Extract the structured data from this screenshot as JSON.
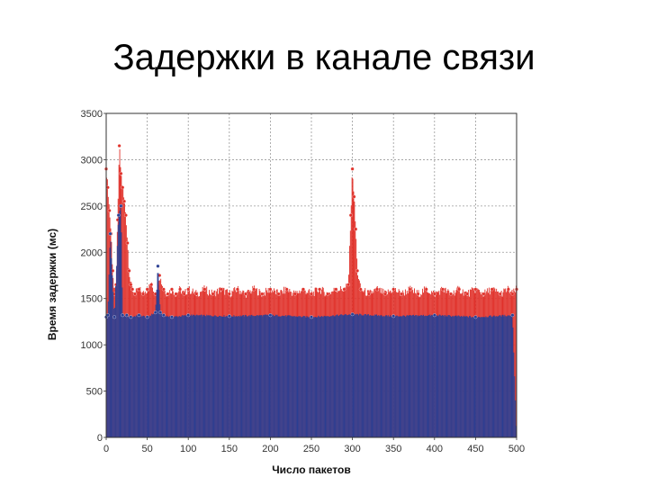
{
  "title": "Задержки в канале связи",
  "colors": {
    "total_delay": "#e0312a",
    "base_delay": "#2b3f93",
    "grid": "#9a9a9a",
    "axis": "#333333"
  },
  "chart_data": {
    "type": "bar",
    "xlabel": "Число пакетов",
    "ylabel": "Время задержки (мс)",
    "xlim": [
      0,
      500
    ],
    "ylim": [
      0,
      3500
    ],
    "xticks": [
      0,
      50,
      100,
      150,
      200,
      250,
      300,
      350,
      400,
      450,
      500
    ],
    "yticks": [
      0,
      500,
      1000,
      1500,
      2000,
      2500,
      3000,
      3500
    ],
    "grid": true,
    "legend": "none",
    "series": [
      {
        "color": "#e0312a",
        "x": [
          0,
          2,
          4,
          6,
          8,
          10,
          12,
          14,
          16,
          18,
          20,
          22,
          24,
          26,
          28,
          30,
          32,
          35,
          40,
          45,
          50,
          55,
          60,
          65,
          70,
          75,
          80,
          85,
          90,
          95,
          100,
          110,
          120,
          130,
          140,
          150,
          160,
          170,
          180,
          190,
          200,
          210,
          220,
          230,
          240,
          250,
          260,
          270,
          280,
          290,
          295,
          298,
          300,
          302,
          304,
          306,
          310,
          320,
          330,
          340,
          350,
          360,
          370,
          380,
          390,
          400,
          410,
          420,
          430,
          440,
          450,
          460,
          470,
          480,
          490,
          495,
          500
        ],
        "values": [
          2900,
          2700,
          2450,
          2200,
          1800,
          1550,
          1650,
          2350,
          3150,
          2850,
          2700,
          2550,
          2400,
          2100,
          1800,
          1650,
          1600,
          1550,
          1600,
          1550,
          1600,
          1650,
          1550,
          1750,
          1600,
          1550,
          1600,
          1550,
          1600,
          1550,
          1600,
          1550,
          1600,
          1550,
          1600,
          1550,
          1600,
          1550,
          1600,
          1550,
          1600,
          1550,
          1600,
          1550,
          1600,
          1550,
          1600,
          1550,
          1600,
          1600,
          1650,
          2400,
          2900,
          2600,
          2250,
          1800,
          1600,
          1550,
          1600,
          1550,
          1600,
          1550,
          1600,
          1550,
          1600,
          1550,
          1600,
          1550,
          1600,
          1550,
          1600,
          1550,
          1600,
          1550,
          1600,
          1550,
          1600
        ]
      },
      {
        "color": "#2b3f93",
        "x": [
          0,
          2,
          5,
          10,
          15,
          18,
          20,
          25,
          30,
          40,
          50,
          60,
          63,
          66,
          70,
          80,
          100,
          150,
          200,
          250,
          300,
          350,
          400,
          450,
          495,
          500
        ],
        "values": [
          1300,
          1320,
          2200,
          1300,
          2400,
          2500,
          1320,
          1320,
          1300,
          1320,
          1300,
          1350,
          1850,
          1350,
          1320,
          1300,
          1320,
          1310,
          1320,
          1300,
          1330,
          1310,
          1320,
          1300,
          1320,
          0
        ]
      }
    ]
  }
}
